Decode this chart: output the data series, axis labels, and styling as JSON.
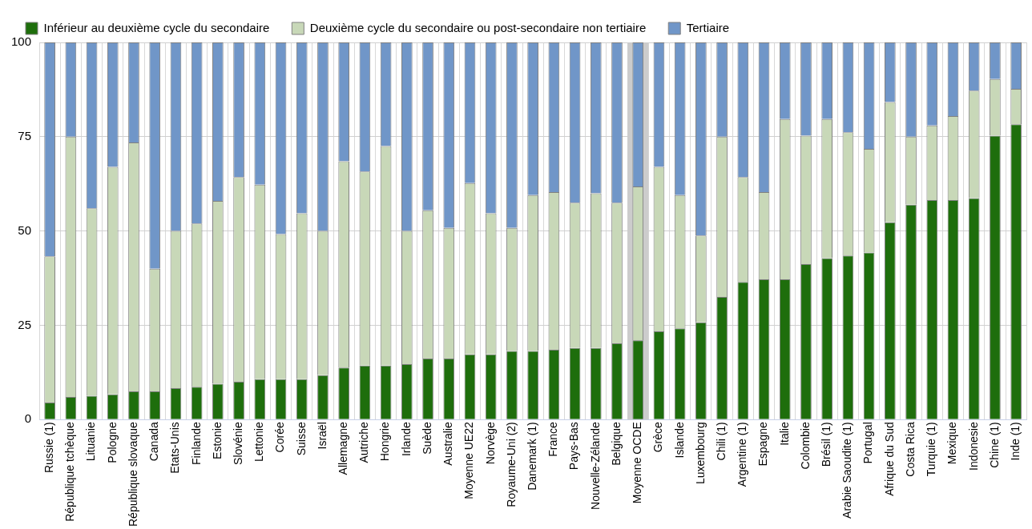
{
  "chart_data": {
    "type": "bar",
    "stacked": true,
    "categories": [
      "Russie (1)",
      "République tchèque",
      "Lituanie",
      "Pologne",
      "République slovaque",
      "Canada",
      "Etats-Unis",
      "Finlande",
      "Estonie",
      "Slovénie",
      "Lettonie",
      "Corée",
      "Suisse",
      "Israël",
      "Allemagne",
      "Autriche",
      "Hongrie",
      "Irlande",
      "Suède",
      "Australie",
      "Moyenne UE22",
      "Norvège",
      "Royaume-Uni (2)",
      "Danemark (1)",
      "France",
      "Pays-Bas",
      "Nouvelle-Zélande",
      "Belgique",
      "Moyenne OCDE",
      "Grèce",
      "Islande",
      "Luxembourg",
      "Chili (1)",
      "Argentine (1)",
      "Espagne",
      "Italie",
      "Colombie",
      "Brésil (1)",
      "Arabie Saoudite (1)",
      "Portugal",
      "Afrique du Sud",
      "Costa Rica",
      "Turquie (1)",
      "Mexique",
      "Indonesie",
      "Chine (1)",
      "Inde (1)"
    ],
    "series": [
      {
        "name": "Inférieur au deuxième cycle du secondaire",
        "color": "#1e6e0c",
        "values": [
          4.5,
          6,
          6.3,
          6.7,
          7.5,
          7.5,
          8.3,
          8.7,
          9.5,
          10,
          10.7,
          10.7,
          10.7,
          11.8,
          13.8,
          14.3,
          14.3,
          14.7,
          16.2,
          16.2,
          17.3,
          17.3,
          18.2,
          18.2,
          18.5,
          19,
          19,
          20.2,
          21,
          23.4,
          24.2,
          25.8,
          32.5,
          36.5,
          37.2,
          37.2,
          41.2,
          42.8,
          43.5,
          44.3,
          52.3,
          57,
          58.2,
          58.2,
          58.7,
          75.3,
          78.3
        ]
      },
      {
        "name": "Deuxième cycle du secondaire ou post-secondaire non tertiaire",
        "color": "#c8d8b8",
        "values": [
          38.8,
          69,
          49.7,
          60.3,
          66,
          32.5,
          41.7,
          43.3,
          48.5,
          54.3,
          51.6,
          38.5,
          44,
          38.2,
          54.7,
          51.5,
          58.2,
          35.3,
          39.3,
          34.6,
          45.4,
          37.4,
          32.6,
          41.3,
          41.8,
          38.5,
          41,
          37.3,
          40.8,
          43.6,
          35.3,
          23,
          42.5,
          27.8,
          23.1,
          42.5,
          34.1,
          36.9,
          32.7,
          27.5,
          31.9,
          18,
          19.8,
          22.3,
          28.5,
          15,
          9.4
        ]
      },
      {
        "name": "Tertiaire",
        "color": "#7096c8",
        "values": [
          56.7,
          25,
          44,
          33,
          26.5,
          60,
          50,
          48,
          42,
          35.7,
          37.7,
          50.8,
          45.3,
          50,
          31.5,
          34.2,
          27.5,
          50,
          44.5,
          49.2,
          37.3,
          45.3,
          49.2,
          40.5,
          39.7,
          42.5,
          40,
          42.5,
          38.2,
          33,
          40.5,
          51.2,
          25,
          35.7,
          39.7,
          20.3,
          24.7,
          20.3,
          23.8,
          28.2,
          15.8,
          25,
          22,
          19.5,
          12.8,
          9.7,
          12.3
        ]
      }
    ],
    "ylim": [
      0,
      100
    ],
    "yticks": [
      0,
      25,
      50,
      75,
      100
    ],
    "grid": true,
    "legend": "top",
    "bands": [
      {
        "axis": "x",
        "from": "Moyenne OCDE",
        "to": "Moyenne OCDE",
        "color": "#cccccc"
      }
    ]
  }
}
